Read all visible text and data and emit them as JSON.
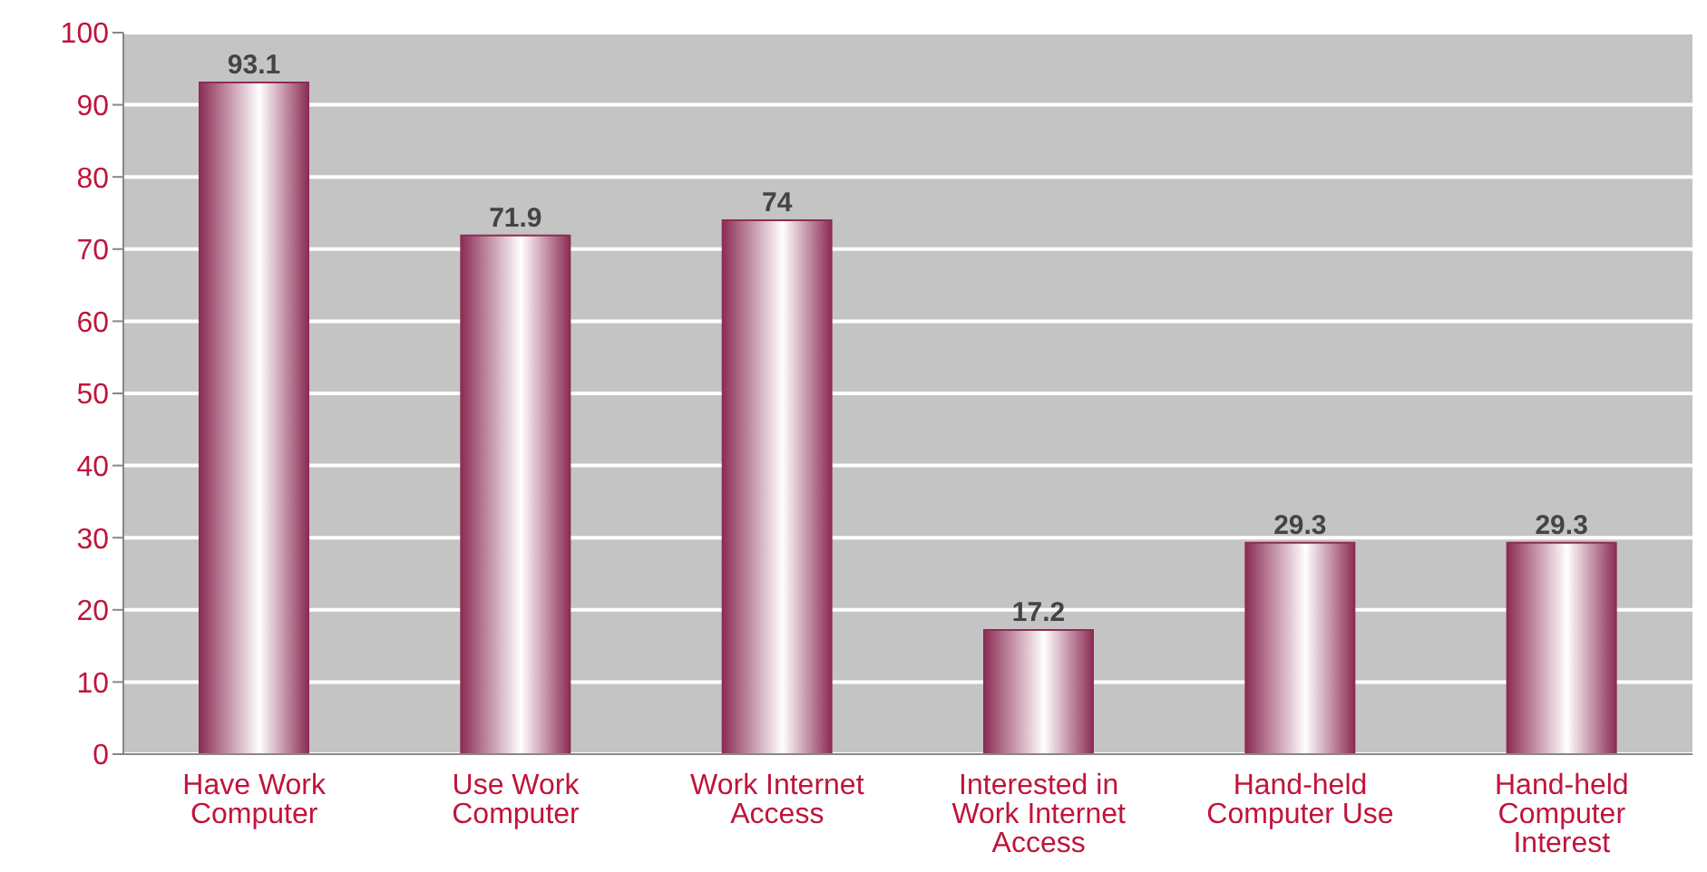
{
  "chart_data": {
    "type": "bar",
    "categories": [
      "Have Work Computer",
      "Use Work Computer",
      "Work Internet Access",
      "Interested in Work Internet Access",
      "Hand-held Computer Use",
      "Hand-held Computer Interest"
    ],
    "values": [
      93.1,
      71.9,
      74,
      17.2,
      29.3,
      29.3
    ],
    "color": "#8c2d55",
    "ylim": [
      0,
      100
    ],
    "yticks": [
      0,
      10,
      20,
      30,
      40,
      50,
      60,
      70,
      80,
      90,
      100
    ],
    "grid": "y",
    "data_labels": true
  }
}
